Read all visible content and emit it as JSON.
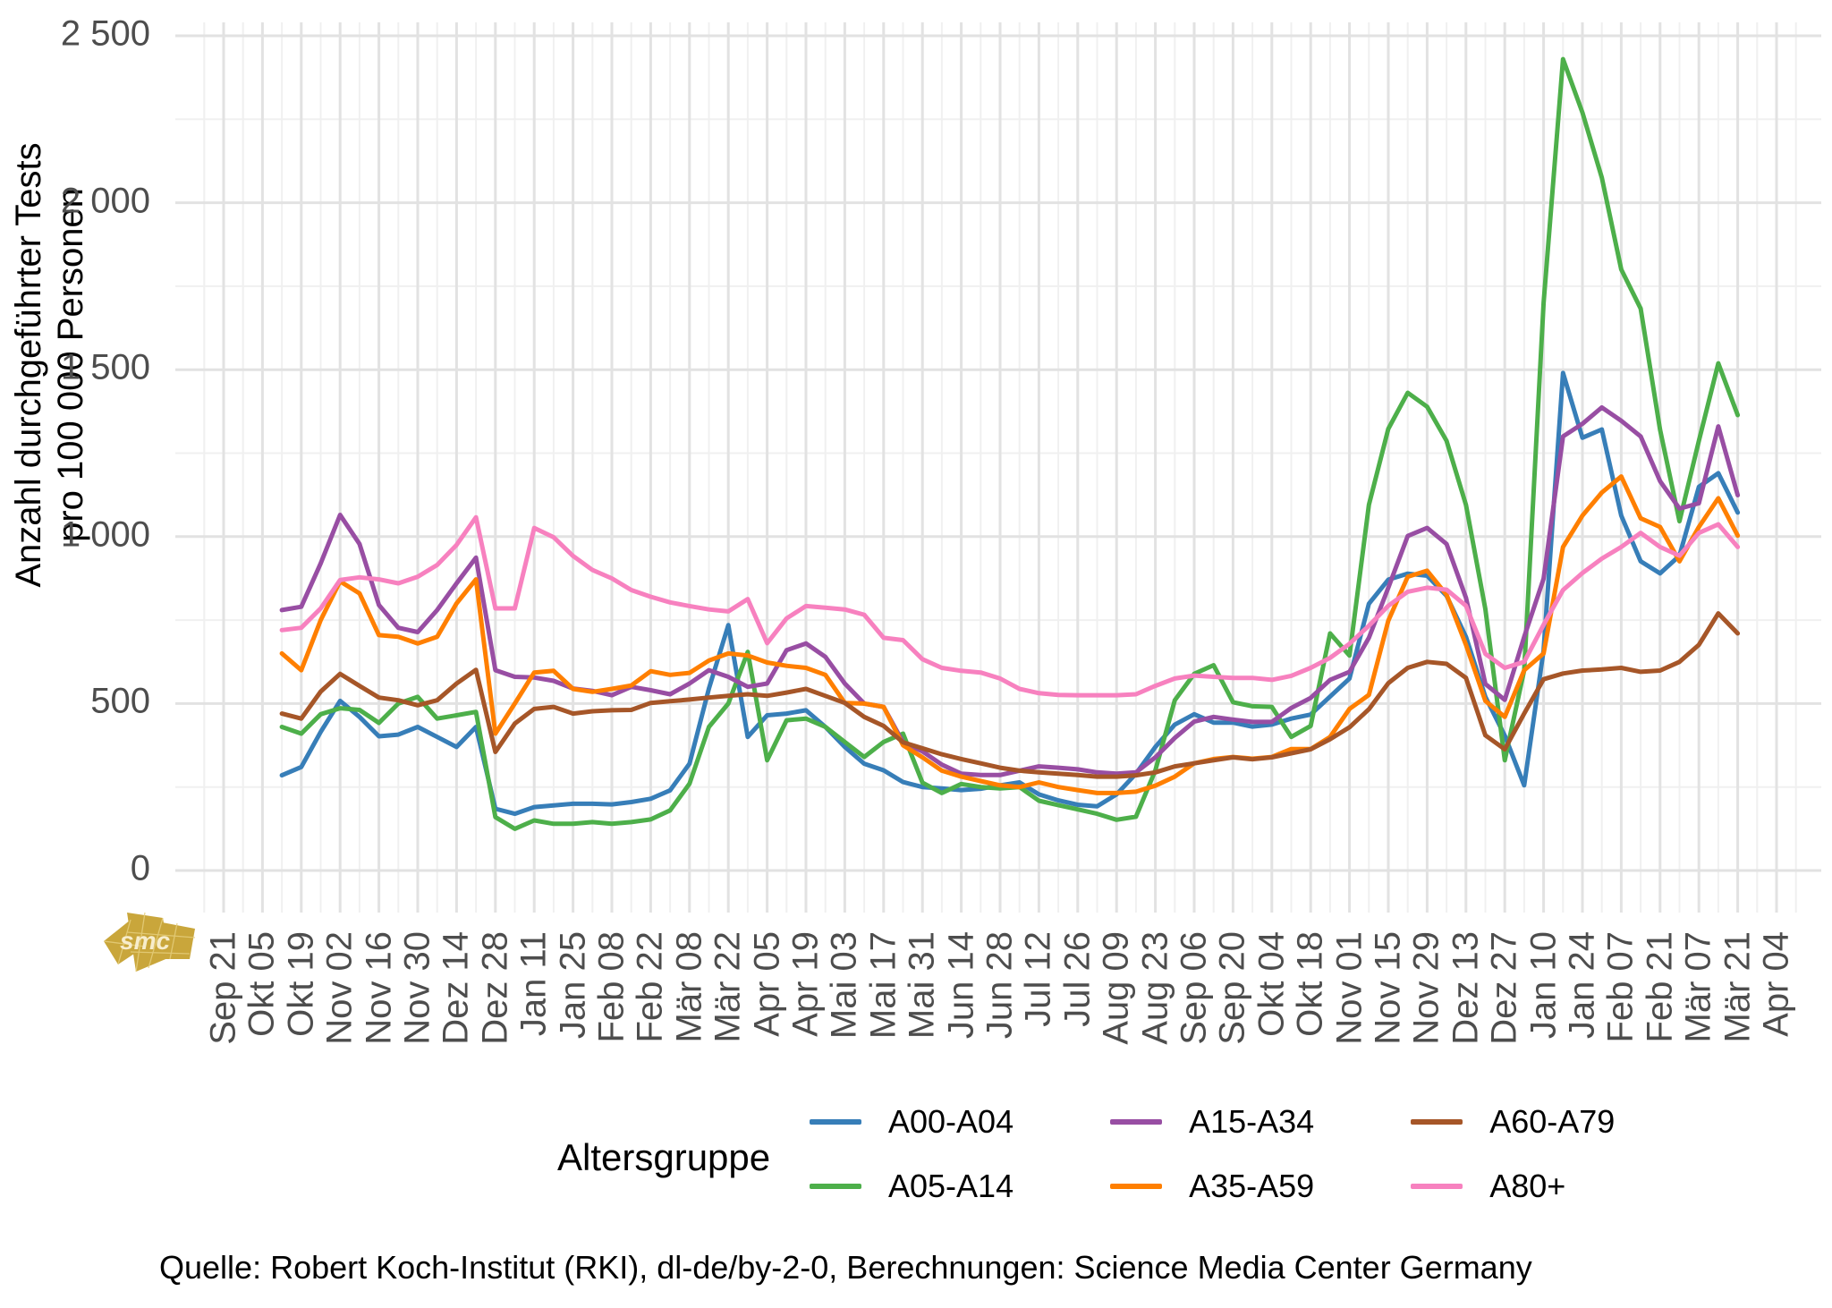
{
  "chart_data": {
    "type": "line",
    "title": "",
    "ylabel_line1": "Anzahl durchgeführter Tests",
    "ylabel_line2": "pro 100 000 Personen",
    "xlabel": "",
    "ylim": [
      0,
      2500
    ],
    "grid": true,
    "legend_position": "bottom",
    "yticks": {
      "values": [
        0,
        500,
        1000,
        1500,
        2000,
        2500
      ],
      "labels": [
        "0",
        "500",
        "1 000",
        "1 500",
        "2 000",
        "2 500"
      ]
    },
    "x_tick_step_weeks": 2,
    "x_tick_labels": [
      "Sep 21",
      "Okt 05",
      "Okt 19",
      "Nov 02",
      "Nov 16",
      "Nov 30",
      "Dez 14",
      "Dez 28",
      "Jan 11",
      "Jan 25",
      "Feb 08",
      "Feb 22",
      "Mär 08",
      "Mär 22",
      "Apr 05",
      "Apr 19",
      "Mai 03",
      "Mai 17",
      "Mai 31",
      "Jun 14",
      "Jun 28",
      "Jul 12",
      "Jul 26",
      "Aug 09",
      "Aug 23",
      "Sep 06",
      "Sep 20",
      "Okt 04",
      "Okt 18",
      "Nov 01",
      "Nov 15",
      "Nov 29",
      "Dez 13",
      "Dez 27",
      "Jan 10",
      "Jan 24",
      "Feb 07",
      "Feb 21",
      "Mär 07",
      "Mär 21",
      "Apr 04"
    ],
    "data_start_week": 3,
    "series": [
      {
        "name": "A00-A04",
        "color": "#377EB8",
        "values": [
          285,
          310,
          415,
          508,
          460,
          402,
          407,
          430,
          400,
          370,
          430,
          185,
          170,
          190,
          195,
          200,
          200,
          198,
          205,
          215,
          240,
          320,
          545,
          735,
          400,
          465,
          470,
          480,
          430,
          370,
          320,
          300,
          265,
          250,
          246,
          241,
          245,
          255,
          264,
          228,
          210,
          197,
          192,
          228,
          290,
          370,
          437,
          468,
          443,
          443,
          431,
          437,
          455,
          467,
          521,
          575,
          799,
          871,
          889,
          883,
          823,
          700,
          520,
          404,
          255,
          660,
          1490,
          1296,
          1321,
          1063,
          926,
          890,
          943,
          1149,
          1190,
          1072
        ]
      },
      {
        "name": "A05-A14",
        "color": "#4DAF4A",
        "values": [
          430,
          410,
          468,
          486,
          481,
          442,
          500,
          520,
          455,
          465,
          475,
          160,
          125,
          150,
          140,
          140,
          145,
          140,
          145,
          153,
          180,
          260,
          430,
          500,
          655,
          330,
          450,
          455,
          430,
          385,
          340,
          385,
          410,
          263,
          232,
          259,
          250,
          246,
          250,
          209,
          196,
          183,
          170,
          152,
          161,
          300,
          510,
          589,
          615,
          504,
          492,
          490,
          400,
          433,
          710,
          644,
          1095,
          1323,
          1431,
          1389,
          1287,
          1095,
          783,
          330,
          600,
          1700,
          2430,
          2270,
          2075,
          1800,
          1683,
          1320,
          1046,
          1287,
          1519,
          1364
        ]
      },
      {
        "name": "A15-A34",
        "color": "#984EA3",
        "values": [
          780,
          790,
          920,
          1065,
          978,
          795,
          727,
          714,
          780,
          860,
          937,
          600,
          580,
          578,
          568,
          545,
          538,
          525,
          550,
          540,
          528,
          560,
          600,
          580,
          550,
          560,
          660,
          680,
          640,
          560,
          500,
          490,
          384,
          357,
          317,
          290,
          286,
          286,
          299,
          312,
          308,
          303,
          294,
          290,
          294,
          339,
          397,
          446,
          460,
          452,
          445,
          445,
          487,
          517,
          571,
          595,
          697,
          847,
          1002,
          1026,
          978,
          817,
          559,
          511,
          700,
          874,
          1300,
          1338,
          1387,
          1347,
          1300,
          1166,
          1084,
          1100,
          1330,
          1124
        ]
      },
      {
        "name": "A35-A59",
        "color": "#FF7F00",
        "values": [
          650,
          600,
          750,
          866,
          830,
          705,
          700,
          680,
          700,
          800,
          872,
          410,
          500,
          593,
          598,
          544,
          535,
          544,
          554,
          597,
          586,
          592,
          629,
          650,
          644,
          623,
          613,
          607,
          586,
          502,
          500,
          490,
          375,
          339,
          299,
          281,
          268,
          255,
          250,
          264,
          250,
          241,
          232,
          232,
          236,
          254,
          281,
          321,
          334,
          340,
          335,
          340,
          364,
          364,
          400,
          484,
          526,
          748,
          880,
          898,
          826,
          676,
          508,
          460,
          600,
          650,
          969,
          1063,
          1132,
          1180,
          1055,
          1029,
          926,
          1029,
          1115,
          1003
        ]
      },
      {
        "name": "A60-A79",
        "color": "#A65628",
        "values": [
          470,
          455,
          536,
          589,
          553,
          518,
          510,
          495,
          510,
          560,
          601,
          355,
          440,
          484,
          490,
          470,
          477,
          480,
          481,
          502,
          507,
          512,
          518,
          523,
          528,
          523,
          533,
          544,
          523,
          502,
          460,
          433,
          384,
          366,
          348,
          334,
          321,
          308,
          299,
          294,
          290,
          286,
          281,
          281,
          285,
          294,
          312,
          321,
          330,
          339,
          333,
          339,
          351,
          363,
          393,
          429,
          483,
          561,
          607,
          625,
          619,
          577,
          405,
          363,
          470,
          573,
          590,
          599,
          602,
          607,
          595,
          599,
          625,
          676,
          770,
          710
        ]
      },
      {
        "name": "A80+",
        "color": "#F781BF",
        "values": [
          720,
          727,
          785,
          870,
          878,
          872,
          860,
          880,
          915,
          975,
          1058,
          785,
          785,
          1026,
          998,
          942,
          900,
          875,
          840,
          820,
          803,
          792,
          782,
          776,
          813,
          681,
          755,
          792,
          787,
          782,
          766,
          697,
          690,
          633,
          607,
          598,
          593,
          575,
          544,
          531,
          526,
          525,
          525,
          525,
          528,
          553,
          575,
          584,
          580,
          577,
          577,
          571,
          583,
          607,
          637,
          679,
          733,
          793,
          835,
          847,
          841,
          793,
          649,
          607,
          625,
          736,
          840,
          891,
          934,
          969,
          1011,
          969,
          943,
          1011,
          1037,
          969
        ]
      }
    ]
  },
  "legend": {
    "title": "Altersgruppe",
    "entries": [
      {
        "label": "A00-A04",
        "color": "#377EB8"
      },
      {
        "label": "A05-A14",
        "color": "#4DAF4A"
      },
      {
        "label": "A15-A34",
        "color": "#984EA3"
      },
      {
        "label": "A35-A59",
        "color": "#FF7F00"
      },
      {
        "label": "A60-A79",
        "color": "#A65628"
      },
      {
        "label": "A80+",
        "color": "#F781BF"
      }
    ]
  },
  "footer": {
    "source": "Quelle: Robert Koch-Institut (RKI), dl-de/by-2-0, Berechnungen: Science Media Center Germany"
  },
  "logo": {
    "text": "smc",
    "color": "#C9A63B"
  },
  "style": {
    "grid_major_color": "#E2E2E2",
    "grid_minor_color": "#F0F0F0",
    "tick_text_color": "#4d4d4d",
    "line_width": 5
  }
}
